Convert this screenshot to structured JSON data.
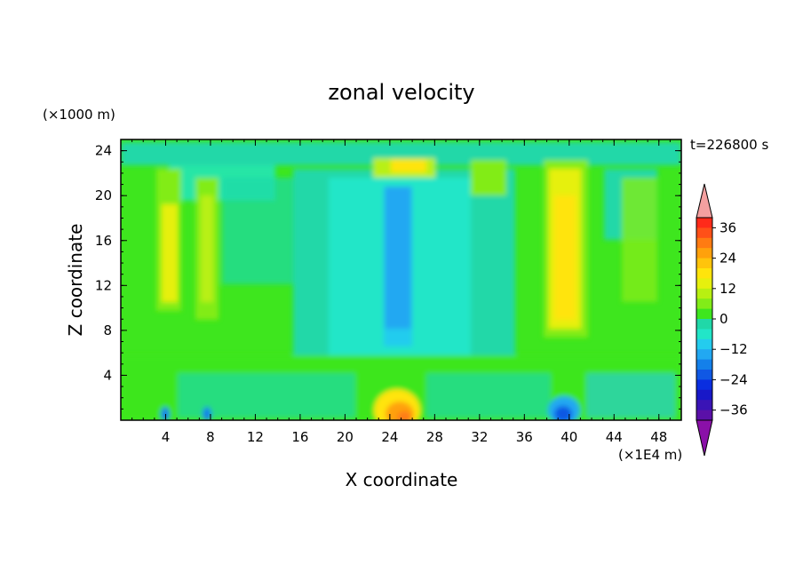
{
  "chart_data": {
    "type": "heatmap",
    "title": "zonal velocity",
    "xlabel": "X coordinate",
    "ylabel": "Z coordinate",
    "x_unit_label": "(×1E4 m)",
    "y_unit_label": "(×1000 m)",
    "time_label": "t=226800 s",
    "xlim": [
      0,
      50
    ],
    "ylim": [
      0,
      25
    ],
    "x_ticks": [
      "4",
      "8",
      "12",
      "16",
      "20",
      "24",
      "28",
      "32",
      "36",
      "40",
      "44",
      "48"
    ],
    "x_tick_values": [
      4,
      8,
      12,
      16,
      20,
      24,
      28,
      32,
      36,
      40,
      44,
      48
    ],
    "y_ticks": [
      "4",
      "8",
      "12",
      "16",
      "20",
      "24"
    ],
    "y_tick_values": [
      4,
      8,
      12,
      16,
      20,
      24
    ],
    "colorbar": {
      "tick_labels": [
        "36",
        "24",
        "12",
        "0",
        "−12",
        "−24",
        "−36"
      ],
      "tick_values": [
        36,
        24,
        12,
        0,
        -12,
        -24,
        -36
      ],
      "levels": [
        40,
        36,
        32,
        28,
        24,
        20,
        16,
        12,
        8,
        4,
        0,
        -4,
        -8,
        -12,
        -16,
        -20,
        -24,
        -28,
        -32,
        -36,
        -40
      ],
      "colors": [
        "#ff2a1a",
        "#ff5018",
        "#ff7b12",
        "#ffa10c",
        "#ffc40c",
        "#ffe40c",
        "#e6f00e",
        "#b8f012",
        "#82ec18",
        "#3ee61e",
        "#20d8a8",
        "#22e6c8",
        "#24ccee",
        "#22a8f2",
        "#1480ea",
        "#1058e4",
        "#0a2ee0",
        "#1818c8",
        "#3a14b6",
        "#5a10a8"
      ],
      "over_color": "#f4a0a0",
      "under_color": "#8a10a8"
    },
    "features": [
      {
        "description_level": 22,
        "x": 25,
        "z_range": [
          0,
          3
        ],
        "value": 26
      },
      {
        "x": 24,
        "z_range": [
          7,
          21
        ],
        "value": -14
      },
      {
        "x": 39,
        "z_range": [
          0,
          2
        ],
        "value": -30
      },
      {
        "x": 39.5,
        "z_range": [
          8,
          22
        ],
        "value": 10
      },
      {
        "x": 4.5,
        "z_range": [
          8,
          22
        ],
        "value": 8
      },
      {
        "x": 7.5,
        "z_range": [
          9,
          20
        ],
        "value": 6
      }
    ]
  }
}
